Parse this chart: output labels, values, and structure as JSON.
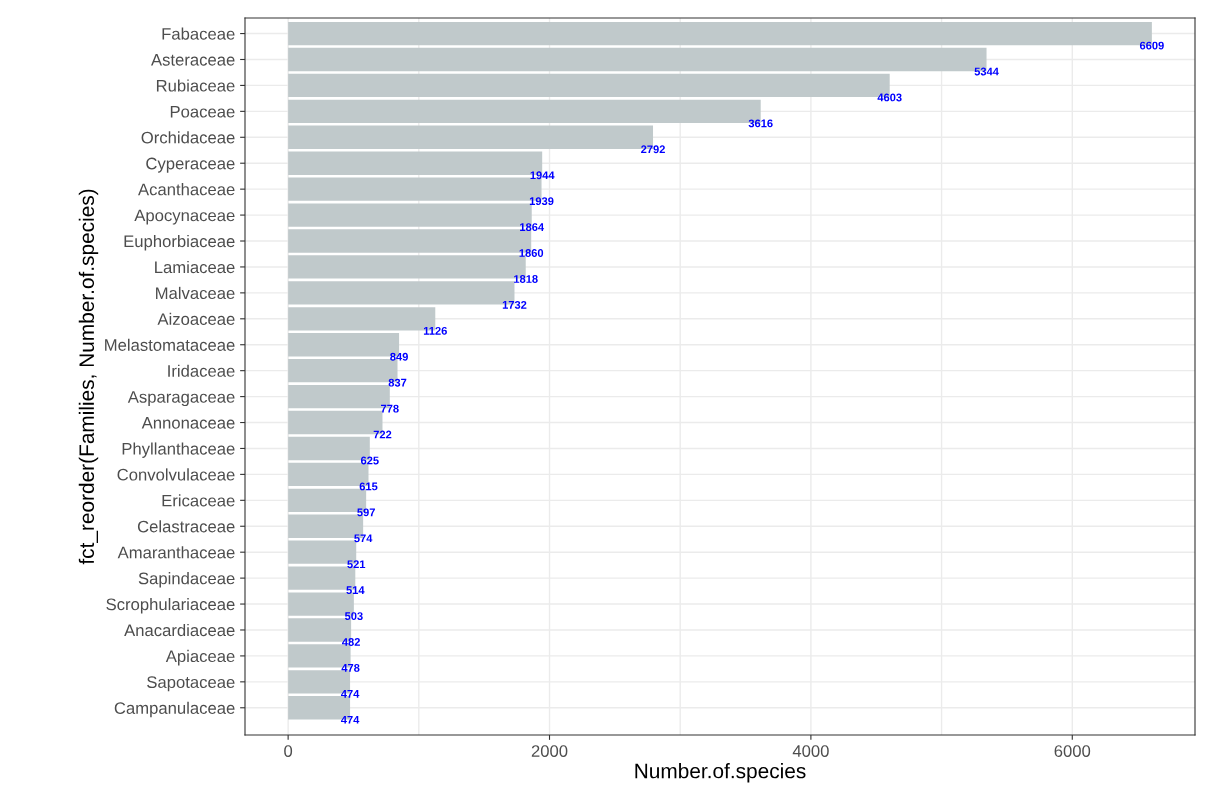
{
  "chart_data": {
    "type": "bar",
    "orientation": "horizontal",
    "xlabel": "Number.of.species",
    "ylabel": "fct_reorder(Families, Number.of.species)",
    "categories": [
      "Fabaceae",
      "Asteraceae",
      "Rubiaceae",
      "Poaceae",
      "Orchidaceae",
      "Cyperaceae",
      "Acanthaceae",
      "Apocynaceae",
      "Euphorbiaceae",
      "Lamiaceae",
      "Malvaceae",
      "Aizoaceae",
      "Melastomataceae",
      "Iridaceae",
      "Asparagaceae",
      "Annonaceae",
      "Phyllanthaceae",
      "Convolvulaceae",
      "Ericaceae",
      "Celastraceae",
      "Amaranthaceae",
      "Sapindaceae",
      "Scrophulariaceae",
      "Anacardiaceae",
      "Apiaceae",
      "Sapotaceae",
      "Campanulaceae"
    ],
    "values": [
      6609,
      5344,
      4603,
      3616,
      2792,
      1944,
      1939,
      1864,
      1860,
      1818,
      1732,
      1126,
      849,
      837,
      778,
      722,
      625,
      615,
      597,
      574,
      521,
      514,
      503,
      482,
      478,
      474,
      474
    ],
    "color": "#c0c9cb",
    "data_labels": true,
    "xlim": [
      -330,
      6939
    ],
    "xticks": [
      0,
      {
        "value": 1000,
        "label": null
      },
      2000,
      {
        "value": 3000,
        "label": null
      },
      4000,
      {
        "value": 5000,
        "label": null
      },
      6000
    ],
    "grid": true
  }
}
